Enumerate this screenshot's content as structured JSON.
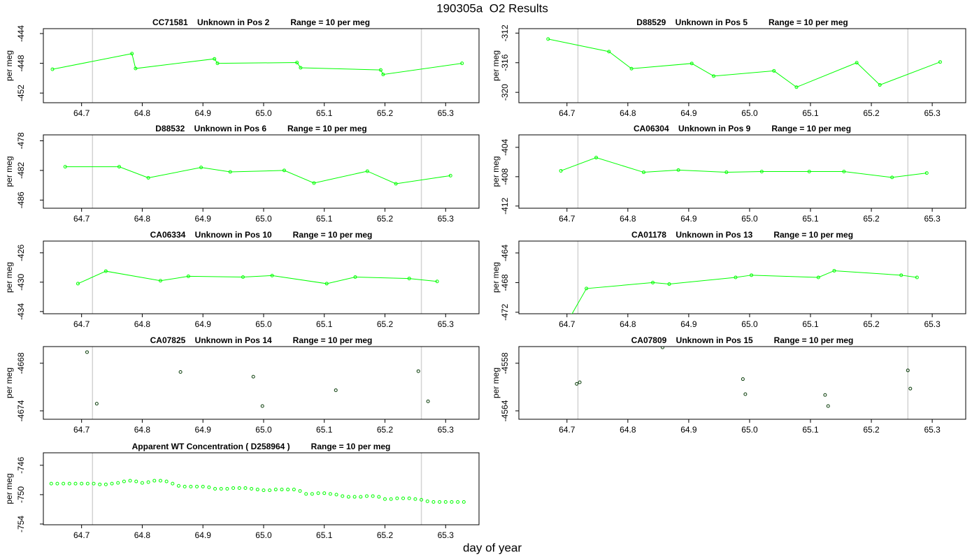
{
  "title": "190305a  O2 Results",
  "xlabel": "day of year",
  "chart_data": [
    {
      "type": "line",
      "title": "CC71581    Unknown in Pos 2         Range = 10 per meg",
      "ylabel": "per meg",
      "color": "#00ff00",
      "reference_lines": [
        64.718,
        65.26
      ],
      "reference_color": "#d3d3d3",
      "x": [
        64.652,
        64.783,
        64.789,
        64.919,
        64.924,
        65.055,
        65.061,
        65.193,
        65.197,
        65.327
      ],
      "values": [
        -448.8,
        -446.7,
        -448.7,
        -447.4,
        -448.0,
        -447.9,
        -448.6,
        -448.9,
        -449.5,
        -448.0
      ],
      "xlim": [
        64.637,
        65.355
      ],
      "xticks": [
        64.7,
        64.8,
        64.9,
        {
          "value": 65,
          "label": "65.0"
        },
        65.1,
        65.2,
        65.3
      ],
      "ylim": [
        -453.3,
        -443.34
      ],
      "yticks": [
        -444,
        -448,
        -452
      ]
    },
    {
      "type": "line",
      "title": "D88529    Unknown in Pos 5         Range = 10 per meg",
      "ylabel": "per meg",
      "color": "#00ff00",
      "reference_lines": [
        64.718,
        65.26
      ],
      "reference_color": "#d3d3d3",
      "x": [
        64.669,
        64.769,
        64.806,
        64.905,
        64.941,
        65.04,
        65.077,
        65.176,
        65.214,
        65.313
      ],
      "values": [
        -312.8,
        -314.5,
        -316.8,
        -316.1,
        -317.8,
        -317.1,
        -319.3,
        -316.0,
        -319.0,
        -315.9
      ],
      "xlim": [
        64.621,
        65.355
      ],
      "xticks": [
        64.7,
        64.8,
        64.9,
        {
          "value": 65,
          "label": "65.0"
        },
        65.1,
        65.2,
        65.3
      ],
      "ylim": [
        -321.4,
        -311.4
      ],
      "yticks": [
        -312,
        -316,
        -320
      ]
    },
    {
      "type": "line",
      "title": "D88532    Unknown in Pos 6         Range = 10 per meg",
      "ylabel": "per meg",
      "color": "#00ff00",
      "reference_lines": [
        64.718,
        65.26
      ],
      "reference_color": "#d3d3d3",
      "x": [
        64.673,
        64.762,
        64.81,
        64.897,
        64.945,
        65.034,
        65.083,
        65.171,
        65.218,
        65.308
      ],
      "values": [
        -481.5,
        -481.5,
        -483.0,
        -481.6,
        -482.2,
        -482.0,
        -483.7,
        -482.1,
        -483.8,
        -482.7
      ],
      "xlim": [
        64.637,
        65.355
      ],
      "xticks": [
        64.7,
        64.8,
        64.9,
        {
          "value": 65,
          "label": "65.0"
        },
        65.1,
        65.2,
        65.3
      ],
      "ylim": [
        -487.1,
        -477.2
      ],
      "yticks": [
        -478,
        -482,
        -486
      ]
    },
    {
      "type": "line",
      "title": "CA06304    Unknown in Pos 9         Range = 10 per meg",
      "ylabel": "per meg",
      "color": "#00ff00",
      "reference_lines": [
        64.718,
        65.26
      ],
      "reference_color": "#d3d3d3",
      "x": [
        64.69,
        64.748,
        64.826,
        64.883,
        64.962,
        65.02,
        65.098,
        65.155,
        65.234,
        65.291
      ],
      "values": [
        -407.2,
        -405.4,
        -407.4,
        -407.1,
        -407.4,
        -407.3,
        -407.3,
        -407.3,
        -408.1,
        -407.5
      ],
      "xlim": [
        64.621,
        65.355
      ],
      "xticks": [
        64.7,
        64.8,
        64.9,
        {
          "value": 65,
          "label": "65.0"
        },
        65.1,
        65.2,
        65.3
      ],
      "ylim": [
        -412.3,
        -402.3
      ],
      "yticks": [
        -404,
        -408,
        -412
      ]
    },
    {
      "type": "line",
      "title": "CA06334    Unknown in Pos 10         Range = 10 per meg",
      "ylabel": "per meg",
      "color": "#00ff00",
      "reference_lines": [
        64.718,
        65.26
      ],
      "reference_color": "#d3d3d3",
      "x": [
        64.694,
        64.74,
        64.83,
        64.876,
        64.966,
        65.014,
        65.104,
        65.151,
        65.24,
        65.286
      ],
      "values": [
        -430.2,
        -428.5,
        -429.8,
        -429.2,
        -429.3,
        -429.1,
        -430.2,
        -429.3,
        -429.5,
        -429.9
      ],
      "xlim": [
        64.637,
        65.355
      ],
      "xticks": [
        64.7,
        64.8,
        64.9,
        {
          "value": 65,
          "label": "65.0"
        },
        65.1,
        65.2,
        65.3
      ],
      "ylim": [
        -434.3,
        -424.4
      ],
      "yticks": [
        -426,
        -430,
        -434
      ]
    },
    {
      "type": "line",
      "title": "CA01178    Unknown in Pos 13         Range = 10 per meg",
      "ylabel": "per meg",
      "color": "#00ff00",
      "reference_lines": [
        64.718,
        65.26
      ],
      "reference_color": "#d3d3d3",
      "x": [
        64.707,
        64.732,
        64.841,
        64.868,
        64.977,
        65.003,
        65.113,
        65.139,
        65.249,
        65.275
      ],
      "values": [
        -472.4,
        -468.8,
        -468.0,
        -468.2,
        -467.3,
        -467.0,
        -467.3,
        -466.4,
        -467.0,
        -467.3
      ],
      "xlim": [
        64.621,
        65.355
      ],
      "xticks": [
        64.7,
        64.8,
        64.9,
        {
          "value": 65,
          "label": "65.0"
        },
        65.1,
        65.2,
        65.3
      ],
      "ylim": [
        -472.2,
        -462.4
      ],
      "yticks": [
        -464,
        -468,
        -472
      ]
    },
    {
      "type": "scatter",
      "title": "CA07825    Unknown in Pos 14         Range = 10 per meg",
      "ylabel": "per meg",
      "color": "#0a3d0a",
      "reference_lines": [
        64.718,
        65.26
      ],
      "reference_color": "#d3d3d3",
      "x": [
        64.709,
        64.725,
        64.863,
        64.983,
        64.998,
        65.119,
        65.255,
        65.271
      ],
      "values": [
        -4666.6,
        -4673.1,
        -4669.1,
        -4669.7,
        -4673.4,
        -4671.4,
        -4669.0,
        -4672.8
      ],
      "xlim": [
        64.637,
        65.355
      ],
      "xticks": [
        64.7,
        64.8,
        64.9,
        {
          "value": 65,
          "label": "65.0"
        },
        65.1,
        65.2,
        65.3
      ],
      "ylim": [
        -4675.06,
        -4665.9
      ],
      "yticks": [
        -4668,
        -4674
      ]
    },
    {
      "type": "scatter",
      "title": "CA07809    Unknown in Pos 15         Range = 10 per meg",
      "ylabel": "per meg",
      "color": "#0a3d0a",
      "reference_lines": [
        64.718,
        65.26
      ],
      "reference_color": "#d3d3d3",
      "x": [
        64.716,
        64.721,
        64.857,
        64.989,
        64.993,
        65.124,
        65.129,
        65.26,
        65.264
      ],
      "values": [
        -4560.6,
        -4560.4,
        -4556.0,
        -4560.0,
        -4561.9,
        -4562.0,
        -4563.4,
        -4558.9,
        -4561.2
      ],
      "xlim": [
        64.621,
        65.355
      ],
      "xticks": [
        64.7,
        64.8,
        64.9,
        {
          "value": 65,
          "label": "65.0"
        },
        65.1,
        65.2,
        65.3
      ],
      "ylim": [
        -4565.06,
        -4555.9
      ],
      "yticks": [
        -4558,
        -4564
      ]
    },
    {
      "type": "scatter",
      "title": "Apparent WT Concentration ( D258964 )         Range = 10 per meg",
      "ylabel": "per meg",
      "color": "#00ff00",
      "reference_lines": [
        64.718,
        65.26
      ],
      "reference_color": "#d3d3d3",
      "x": [
        64.65,
        64.66,
        64.67,
        64.68,
        64.69,
        64.7,
        64.71,
        64.72,
        64.73,
        64.74,
        64.75,
        64.76,
        64.77,
        64.78,
        64.79,
        64.8,
        64.81,
        64.82,
        64.83,
        64.84,
        64.85,
        64.86,
        64.87,
        64.88,
        64.89,
        64.9,
        64.91,
        64.92,
        64.93,
        64.94,
        64.95,
        64.96,
        64.97,
        64.98,
        64.99,
        65.0,
        65.01,
        65.02,
        65.03,
        65.04,
        65.05,
        65.06,
        65.07,
        65.08,
        65.09,
        65.1,
        65.11,
        65.12,
        65.13,
        65.14,
        65.15,
        65.16,
        65.17,
        65.18,
        65.19,
        65.2,
        65.21,
        65.22,
        65.23,
        65.24,
        65.25,
        65.26,
        65.27,
        65.28,
        65.29,
        65.3,
        65.31,
        65.32,
        65.33
      ],
      "values": [
        -748.5,
        -748.5,
        -748.5,
        -748.5,
        -748.5,
        -748.5,
        -748.5,
        -748.5,
        -748.6,
        -748.6,
        -748.5,
        -748.4,
        -748.2,
        -748.1,
        -748.2,
        -748.4,
        -748.3,
        -748.1,
        -748.1,
        -748.2,
        -748.5,
        -748.8,
        -748.9,
        -748.9,
        -748.9,
        -748.9,
        -749.0,
        -749.2,
        -749.2,
        -749.2,
        -749.1,
        -749.1,
        -749.1,
        -749.2,
        -749.3,
        -749.4,
        -749.4,
        -749.3,
        -749.3,
        -749.3,
        -749.3,
        -749.5,
        -749.9,
        -749.9,
        -749.8,
        -749.8,
        -749.9,
        -750.0,
        -750.2,
        -750.3,
        -750.3,
        -750.3,
        -750.2,
        -750.2,
        -750.3,
        -750.6,
        -750.6,
        -750.5,
        -750.5,
        -750.5,
        -750.6,
        -750.7,
        -750.9,
        -751.0,
        -751.0,
        -751.0,
        -751.0,
        -751.0,
        -751.0
      ],
      "xlim": [
        64.637,
        65.355
      ],
      "xticks": [
        64.7,
        64.8,
        64.9,
        {
          "value": 65,
          "label": "65.0"
        },
        65.1,
        65.2,
        65.3
      ],
      "ylim": [
        -754.1,
        -744.3
      ],
      "yticks": [
        -746,
        -750,
        -754
      ]
    }
  ]
}
